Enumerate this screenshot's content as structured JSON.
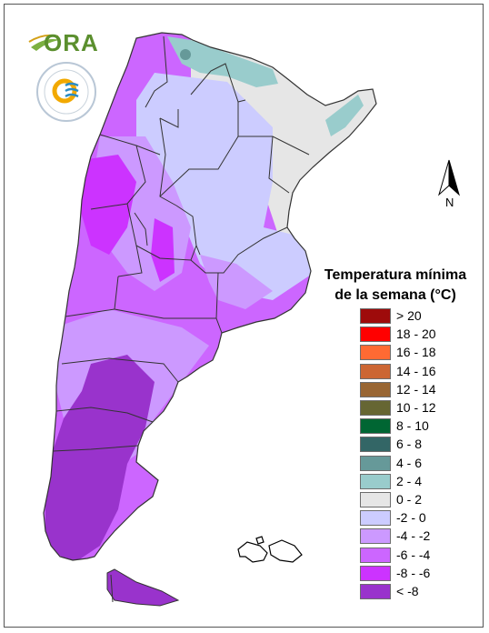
{
  "logos": {
    "ora_text": "ORA",
    "seal_text": "SERVICIO METEOROLÓGICO NACIONAL · ARGENTINA"
  },
  "north_arrow": {
    "label": "N"
  },
  "legend": {
    "title_line1": "Temperatura mínima",
    "title_line2": "de la semana (°C)",
    "items": [
      {
        "label": "> 20",
        "color": "#9e0b0b"
      },
      {
        "label": "18 - 20",
        "color": "#ff0000"
      },
      {
        "label": "16 - 18",
        "color": "#ff6a33"
      },
      {
        "label": "14 - 16",
        "color": "#cc6633"
      },
      {
        "label": "12 - 14",
        "color": "#996633"
      },
      {
        "label": "10 - 12",
        "color": "#666633"
      },
      {
        "label": "8 - 10",
        "color": "#006633"
      },
      {
        "label": "6 - 8",
        "color": "#336666"
      },
      {
        "label": "4 - 6",
        "color": "#669999"
      },
      {
        "label": "2 - 4",
        "color": "#99cccc"
      },
      {
        "label": "0 - 2",
        "color": "#e6e6e6"
      },
      {
        "label": "-2 - 0",
        "color": "#ccccff"
      },
      {
        "label": "-4 - -2",
        "color": "#cc99ff"
      },
      {
        "label": "-6 - -4",
        "color": "#cc66ff"
      },
      {
        "label": "-8 - -6",
        "color": "#cc33ff"
      },
      {
        "label": "< -8",
        "color": "#9933cc"
      }
    ]
  }
}
